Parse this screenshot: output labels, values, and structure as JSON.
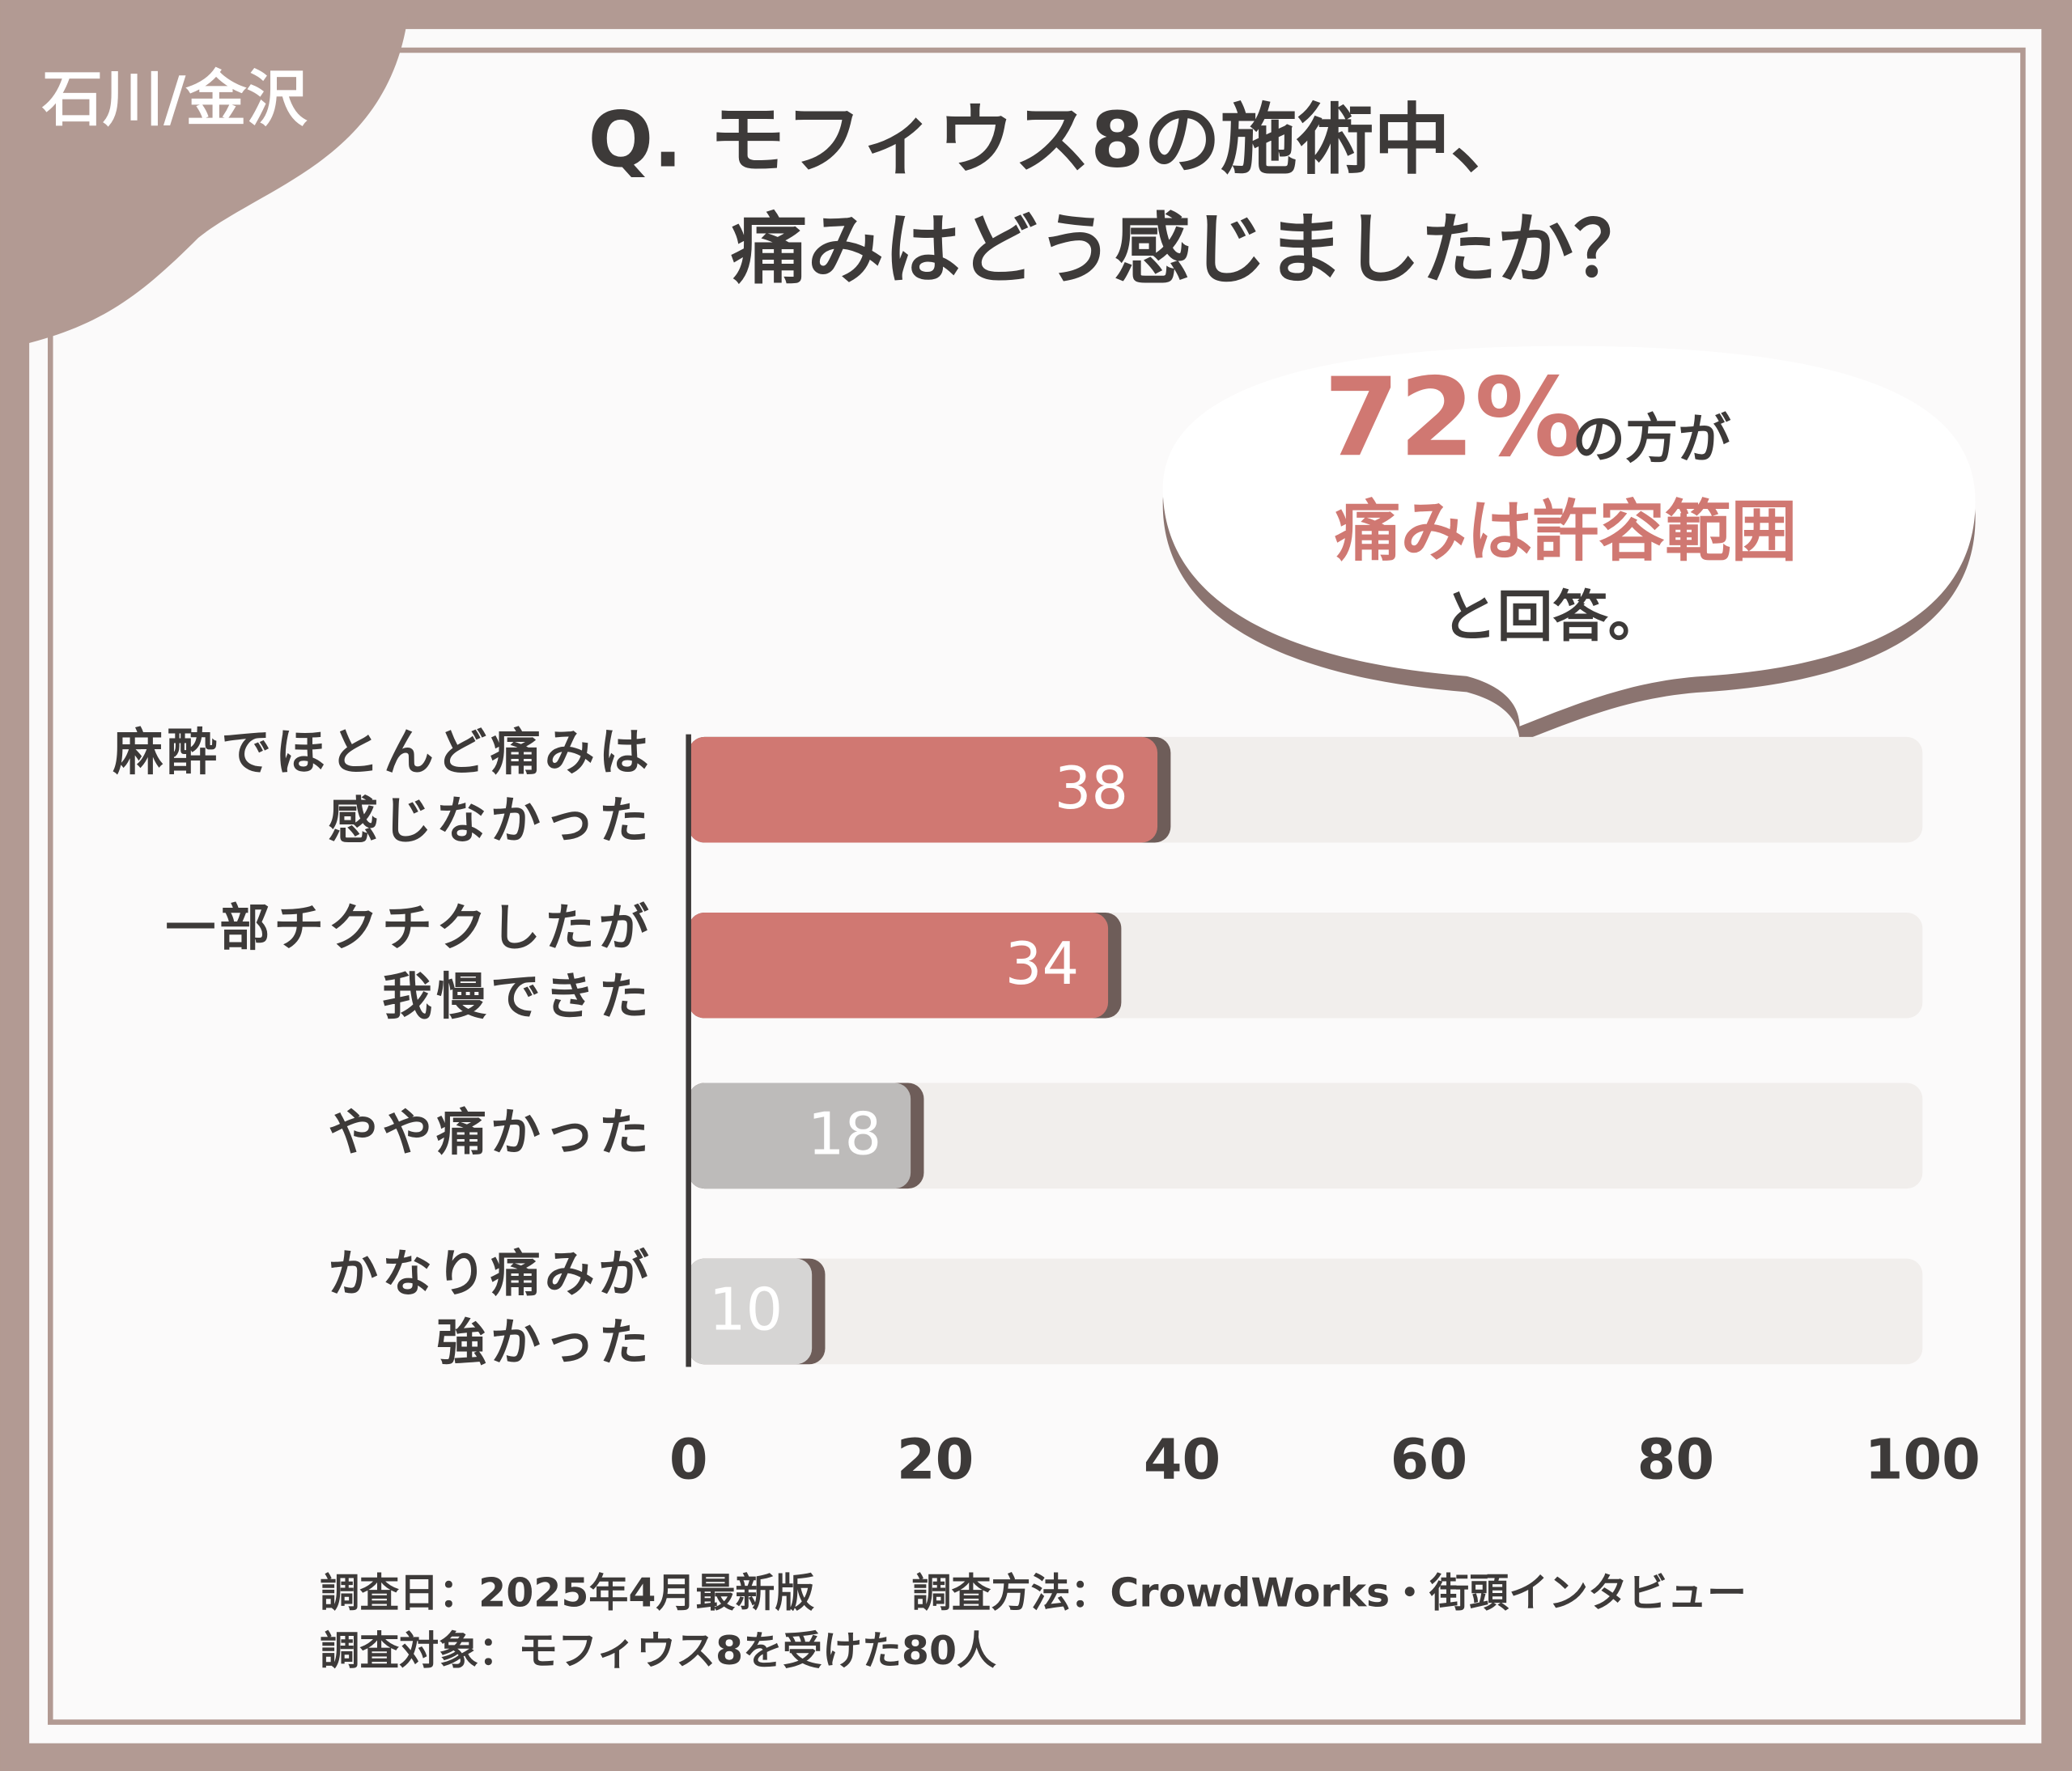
{
  "tag": "石川/金沢",
  "chart_data": {
    "type": "bar",
    "orientation": "horizontal",
    "title": [
      "Q. モフィウス8の施術中、",
      "痛みはどう感じましたか？"
    ],
    "categories": [
      [
        "麻酔でほとんど痛みは",
        "感じなかった"
      ],
      [
        "一部チクチクしたが",
        "我慢できた"
      ],
      [
        "やや痛かった"
      ],
      [
        "かなり痛みが",
        "強かった"
      ]
    ],
    "values": [
      38,
      34,
      18,
      10
    ],
    "colors": [
      "#d07872",
      "#d07872",
      "#bdbbba",
      "#d6d5d4"
    ],
    "xlim": [
      0,
      100
    ],
    "xticks": [
      0,
      20,
      40,
      60,
      80,
      100
    ]
  },
  "callout": {
    "highlight": "72%",
    "line1": "の方が",
    "line2": "痛みは許容範囲",
    "line3": "と回答。"
  },
  "footnote": {
    "date": "調査日：2025年4月最新版",
    "method": "調査方法：CrowdWorks・街頭インタビュー",
    "target": "調査対象：モフィウス8を受けた80人"
  }
}
